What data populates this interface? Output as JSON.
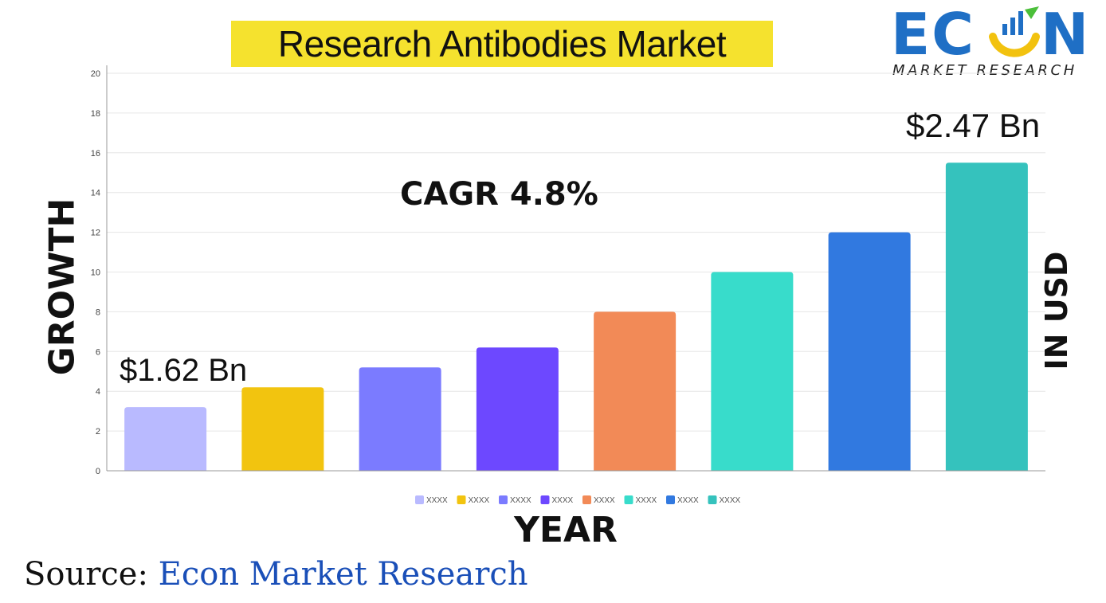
{
  "header": {
    "title": "Research Antibodies Market"
  },
  "logo": {
    "word": "ECON",
    "sub": "MARKET RESEARCH",
    "colors": {
      "text": "#1f6fc5",
      "accent": "#f2c20f",
      "accent2": "#4bbf3a"
    }
  },
  "axes": {
    "ylabel": "GROWTH",
    "xlabel": "YEAR",
    "right_label": "IN USD"
  },
  "annotations": {
    "start_value": "$1.62 Bn",
    "end_value": "$2.47 Bn",
    "cagr": "CAGR 4.8%"
  },
  "source": {
    "prefix": "Source: ",
    "name": "Econ Market Research"
  },
  "chart_data": {
    "type": "bar",
    "categories": [
      "XXXX",
      "XXXX",
      "XXXX",
      "XXXX",
      "XXXX",
      "XXXX",
      "XXXX",
      "XXXX"
    ],
    "values": [
      3.2,
      4.2,
      5.2,
      6.2,
      8.0,
      10.0,
      12.0,
      15.5
    ],
    "colors": [
      "#b9baff",
      "#f2c40f",
      "#7b7bff",
      "#6d48ff",
      "#f28a57",
      "#38dccb",
      "#3179e0",
      "#35c2bd"
    ],
    "ylim": [
      0,
      20
    ],
    "yticks": [
      0,
      2,
      4,
      6,
      8,
      10,
      12,
      14,
      16,
      18,
      20
    ],
    "grid": true,
    "legend_position": "bottom",
    "legend": [
      "XXXX",
      "XXXX",
      "XXXX",
      "XXXX",
      "XXXX",
      "XXXX",
      "XXXX",
      "XXXX"
    ]
  }
}
